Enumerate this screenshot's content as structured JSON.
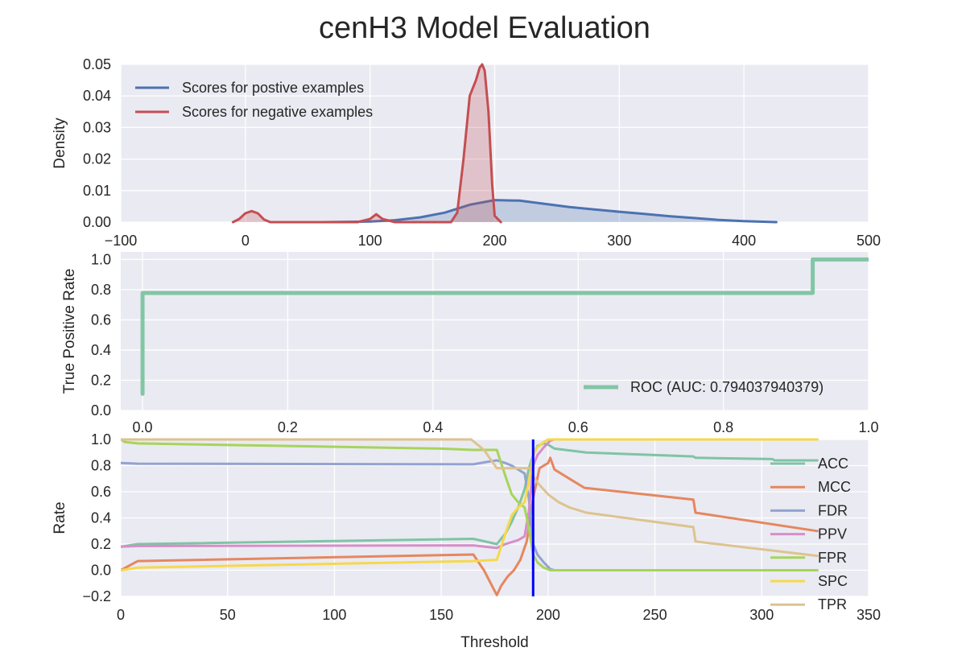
{
  "title": "cenH3 Model Evaluation",
  "colors": {
    "plot_bg": "#eaeaf2",
    "grid": "#ffffff",
    "positive": "#4c72b0",
    "negative": "#c44e52",
    "roc": "#82c6a5",
    "threshold_marker": "#0000ff",
    "ACC": "#7fc4a4",
    "MCC": "#e5875f",
    "FDR": "#93a3cf",
    "PPV": "#d68ec8",
    "FPR": "#a6d45a",
    "SPC": "#f6d84b",
    "TPR": "#ddc38f"
  },
  "chart_data": [
    {
      "type": "area",
      "ylabel": "Density",
      "xlim": [
        -100,
        500
      ],
      "ylim": [
        0,
        0.05
      ],
      "xticks": [
        "−100",
        "0",
        "100",
        "200",
        "300",
        "400",
        "500"
      ],
      "yticks": [
        "0.00",
        "0.01",
        "0.02",
        "0.03",
        "0.04",
        "0.05"
      ],
      "legend_position": "top-left",
      "series": [
        {
          "name": "Scores for postive examples",
          "color_key": "positive",
          "x": [
            62,
            100,
            120,
            140,
            160,
            180,
            200,
            220,
            240,
            260,
            280,
            300,
            320,
            340,
            360,
            380,
            400,
            426
          ],
          "y": [
            0,
            0.0002,
            0.0006,
            0.0015,
            0.003,
            0.0055,
            0.007,
            0.0068,
            0.0058,
            0.0048,
            0.004,
            0.0033,
            0.0026,
            0.0019,
            0.0013,
            0.0007,
            0.0003,
            0
          ]
        },
        {
          "name": "Scores for negative examples",
          "color_key": "negative",
          "x": [
            -10,
            -5,
            0,
            5,
            10,
            15,
            20,
            90,
            100,
            105,
            110,
            120,
            165,
            170,
            175,
            180,
            185,
            188,
            190,
            192,
            195,
            198,
            200,
            205
          ],
          "y": [
            0,
            0.001,
            0.0028,
            0.0035,
            0.0028,
            0.0008,
            0,
            0,
            0.001,
            0.0025,
            0.001,
            0,
            0,
            0.003,
            0.02,
            0.04,
            0.045,
            0.049,
            0.05,
            0.048,
            0.035,
            0.012,
            0.002,
            0
          ]
        }
      ]
    },
    {
      "type": "line",
      "ylabel": "True Positive Rate",
      "xlim": [
        -0.03,
        1.0
      ],
      "ylim": [
        0,
        1.05
      ],
      "xticks": [
        "0.0",
        "0.2",
        "0.4",
        "0.6",
        "0.8",
        "1.0"
      ],
      "yticks": [
        "0.0",
        "0.2",
        "0.4",
        "0.6",
        "0.8",
        "1.0"
      ],
      "legend_position": "bottom-right",
      "series": [
        {
          "name": "ROC (AUC: 0.794037940379)",
          "color_key": "roc",
          "x": [
            0.0,
            0.0,
            0.0,
            0.923,
            0.923,
            1.0
          ],
          "y": [
            0.11,
            0.5,
            0.778,
            0.778,
            1.0,
            1.0
          ]
        }
      ]
    },
    {
      "type": "line",
      "xlabel": "Threshold",
      "ylabel": "Rate",
      "xlim": [
        0,
        350
      ],
      "ylim": [
        -0.2,
        1.0
      ],
      "xticks": [
        "0",
        "50",
        "100",
        "150",
        "200",
        "250",
        "300",
        "350"
      ],
      "yticks": [
        "−0.2",
        "0.0",
        "0.2",
        "0.4",
        "0.6",
        "0.8",
        "1.0"
      ],
      "legend_position": "right",
      "threshold_marker": 193,
      "series": [
        {
          "name": "ACC",
          "color_key": "ACC",
          "x": [
            0,
            8,
            165,
            176,
            178,
            180,
            183,
            186,
            189,
            191,
            193,
            195,
            198,
            200,
            203,
            218,
            268,
            269,
            305,
            306,
            326
          ],
          "y": [
            0.18,
            0.2,
            0.24,
            0.2,
            0.24,
            0.28,
            0.37,
            0.48,
            0.62,
            0.78,
            0.88,
            0.95,
            0.97,
            0.96,
            0.93,
            0.9,
            0.87,
            0.86,
            0.85,
            0.84,
            0.84
          ]
        },
        {
          "name": "MCC",
          "color_key": "MCC",
          "x": [
            0,
            8,
            165,
            170,
            176,
            178,
            181,
            184,
            187,
            190,
            193,
            196,
            198,
            200,
            201,
            203,
            210,
            217,
            268,
            269,
            326
          ],
          "y": [
            0,
            0.07,
            0.12,
            0.0,
            -0.19,
            -0.12,
            -0.05,
            0.0,
            0.08,
            0.22,
            0.55,
            0.78,
            0.8,
            0.82,
            0.86,
            0.77,
            0.7,
            0.63,
            0.54,
            0.44,
            0.3
          ]
        },
        {
          "name": "FDR",
          "color_key": "FDR",
          "x": [
            0,
            8,
            165,
            172,
            176,
            180,
            183,
            186,
            189,
            191,
            193,
            195,
            198,
            201,
            203,
            326
          ],
          "y": [
            0.82,
            0.815,
            0.81,
            0.83,
            0.84,
            0.82,
            0.8,
            0.77,
            0.74,
            0.55,
            0.2,
            0.12,
            0.06,
            0.01,
            0.0,
            0.0
          ]
        },
        {
          "name": "PPV",
          "color_key": "PPV",
          "x": [
            0,
            8,
            165,
            176,
            180,
            186,
            189,
            191,
            193,
            195,
            198,
            201,
            203,
            326
          ],
          "y": [
            0.18,
            0.185,
            0.19,
            0.17,
            0.2,
            0.23,
            0.26,
            0.45,
            0.8,
            0.88,
            0.94,
            0.99,
            1.0,
            1.0
          ]
        },
        {
          "name": "FPR",
          "color_key": "FPR",
          "x": [
            0,
            2,
            8,
            150,
            165,
            176,
            178,
            180,
            183,
            186,
            189,
            191,
            193,
            195,
            198,
            201,
            203,
            326
          ],
          "y": [
            1.0,
            0.98,
            0.97,
            0.93,
            0.92,
            0.92,
            0.82,
            0.72,
            0.58,
            0.52,
            0.48,
            0.32,
            0.12,
            0.06,
            0.02,
            0.0,
            0.0,
            0.0
          ]
        },
        {
          "name": "SPC",
          "color_key": "SPC",
          "x": [
            0,
            8,
            165,
            176,
            178,
            180,
            183,
            186,
            189,
            191,
            193,
            195,
            198,
            200,
            203,
            326
          ],
          "y": [
            0,
            0.02,
            0.07,
            0.08,
            0.18,
            0.28,
            0.42,
            0.48,
            0.52,
            0.68,
            0.88,
            0.94,
            0.98,
            1.0,
            1.0,
            1.0
          ]
        },
        {
          "name": "TPR",
          "color_key": "TPR",
          "x": [
            0,
            164,
            170,
            176,
            185,
            192,
            193,
            195,
            200,
            205,
            210,
            218,
            268,
            269,
            326
          ],
          "y": [
            1.0,
            1.0,
            0.92,
            0.78,
            0.78,
            0.78,
            0.72,
            0.67,
            0.58,
            0.52,
            0.48,
            0.44,
            0.33,
            0.22,
            0.11
          ]
        }
      ]
    }
  ]
}
